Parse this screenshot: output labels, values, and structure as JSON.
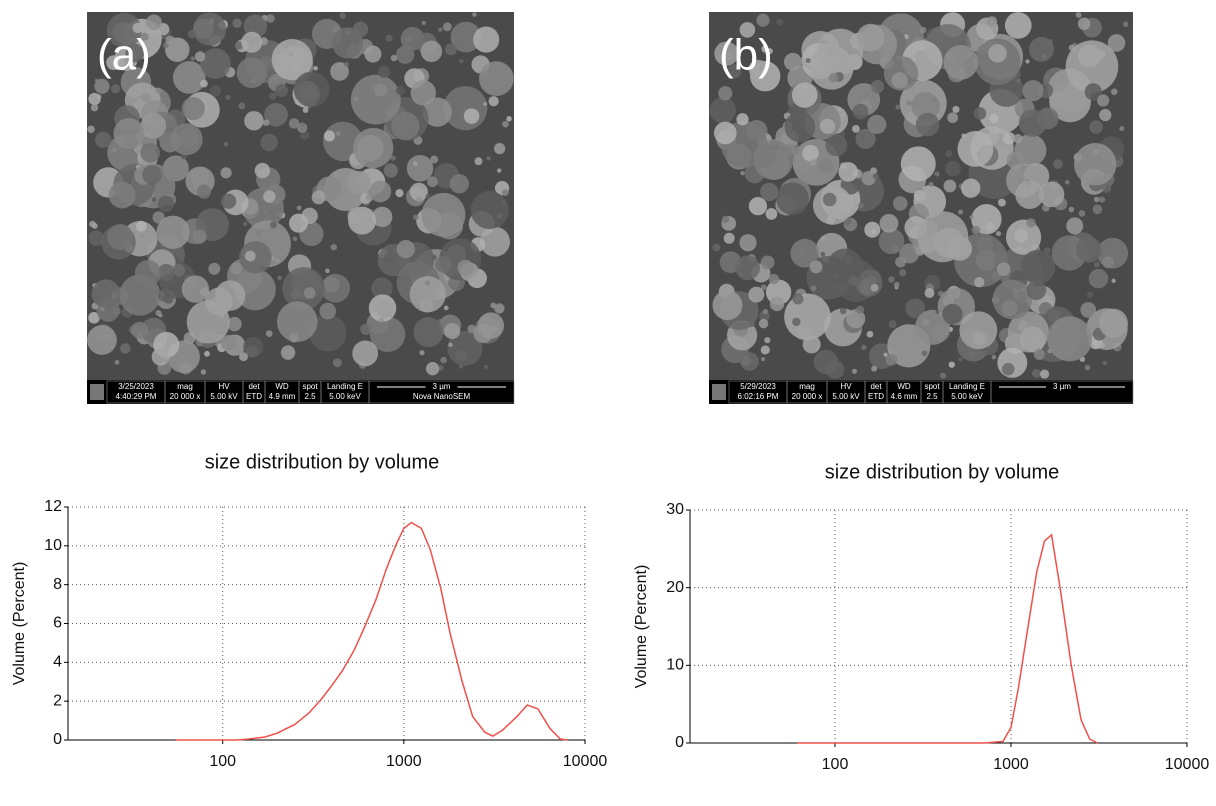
{
  "images": [
    {
      "label": "(a)",
      "info": [
        {
          "top": "3/25/2023",
          "bottom": "4:40:29 PM"
        },
        {
          "top": "mag",
          "bottom": "20 000 x"
        },
        {
          "top": "HV",
          "bottom": "5.00 kV"
        },
        {
          "top": "det",
          "bottom": "ETD"
        },
        {
          "top": "WD",
          "bottom": "4.9 mm"
        },
        {
          "top": "spot",
          "bottom": "2.5"
        },
        {
          "top": "Landing E",
          "bottom": "5.00 keV"
        },
        {
          "top": "3 µm",
          "bottom": "Nova NanoSEM"
        }
      ]
    },
    {
      "label": "(b)",
      "info": [
        {
          "top": "5/29/2023",
          "bottom": "6:02:16 PM"
        },
        {
          "top": "mag",
          "bottom": "20 000 x"
        },
        {
          "top": "HV",
          "bottom": "5.00 kV"
        },
        {
          "top": "det",
          "bottom": "ETD"
        },
        {
          "top": "WD",
          "bottom": "4.6 mm"
        },
        {
          "top": "spot",
          "bottom": "2.5"
        },
        {
          "top": "Landing E",
          "bottom": "5.00 keV"
        },
        {
          "top": "3 µm"
        }
      ]
    }
  ],
  "chart_data": [
    {
      "type": "line",
      "title": "size distribution by volume",
      "y_label": "Volume (Percent)",
      "xlog": true,
      "grid": true,
      "xlim": [
        14,
        10000
      ],
      "ylim": [
        0,
        12
      ],
      "xticks": [
        100,
        1000,
        10000
      ],
      "yticks": [
        0,
        2,
        4,
        6,
        8,
        10,
        12
      ],
      "x": [
        55,
        65,
        80,
        100,
        120,
        140,
        170,
        200,
        250,
        300,
        350,
        400,
        460,
        530,
        600,
        700,
        800,
        900,
        1000,
        1100,
        1250,
        1400,
        1600,
        1800,
        2100,
        2400,
        2800,
        3100,
        3500,
        4200,
        4800,
        5500,
        6400,
        7300,
        8000
      ],
      "series": [
        {
          "color": "#f0504a",
          "values": [
            0,
            0,
            0,
            0,
            0,
            0.05,
            0.15,
            0.35,
            0.8,
            1.4,
            2.1,
            2.8,
            3.6,
            4.6,
            5.7,
            7.2,
            8.8,
            10.0,
            10.9,
            11.2,
            10.9,
            9.8,
            7.8,
            5.5,
            3.0,
            1.2,
            0.4,
            0.2,
            0.5,
            1.2,
            1.8,
            1.6,
            0.6,
            0.05,
            0
          ]
        }
      ]
    },
    {
      "type": "line",
      "title": "size distribution by volume",
      "y_label": "Volume (Percent)",
      "xlog": true,
      "grid": true,
      "xlim": [
        15,
        10000
      ],
      "ylim": [
        0,
        30
      ],
      "xticks": [
        100,
        1000,
        10000
      ],
      "yticks": [
        0,
        10,
        20,
        30
      ],
      "x": [
        61,
        100,
        200,
        400,
        700,
        900,
        1000,
        1100,
        1250,
        1400,
        1550,
        1700,
        1900,
        2200,
        2500,
        2800,
        3100
      ],
      "series": [
        {
          "color": "#f0504a",
          "values": [
            0,
            0,
            0,
            0,
            0,
            0.2,
            2,
            7,
            15,
            22,
            26,
            26.8,
            20,
            10,
            3,
            0.5,
            0
          ]
        }
      ]
    }
  ]
}
